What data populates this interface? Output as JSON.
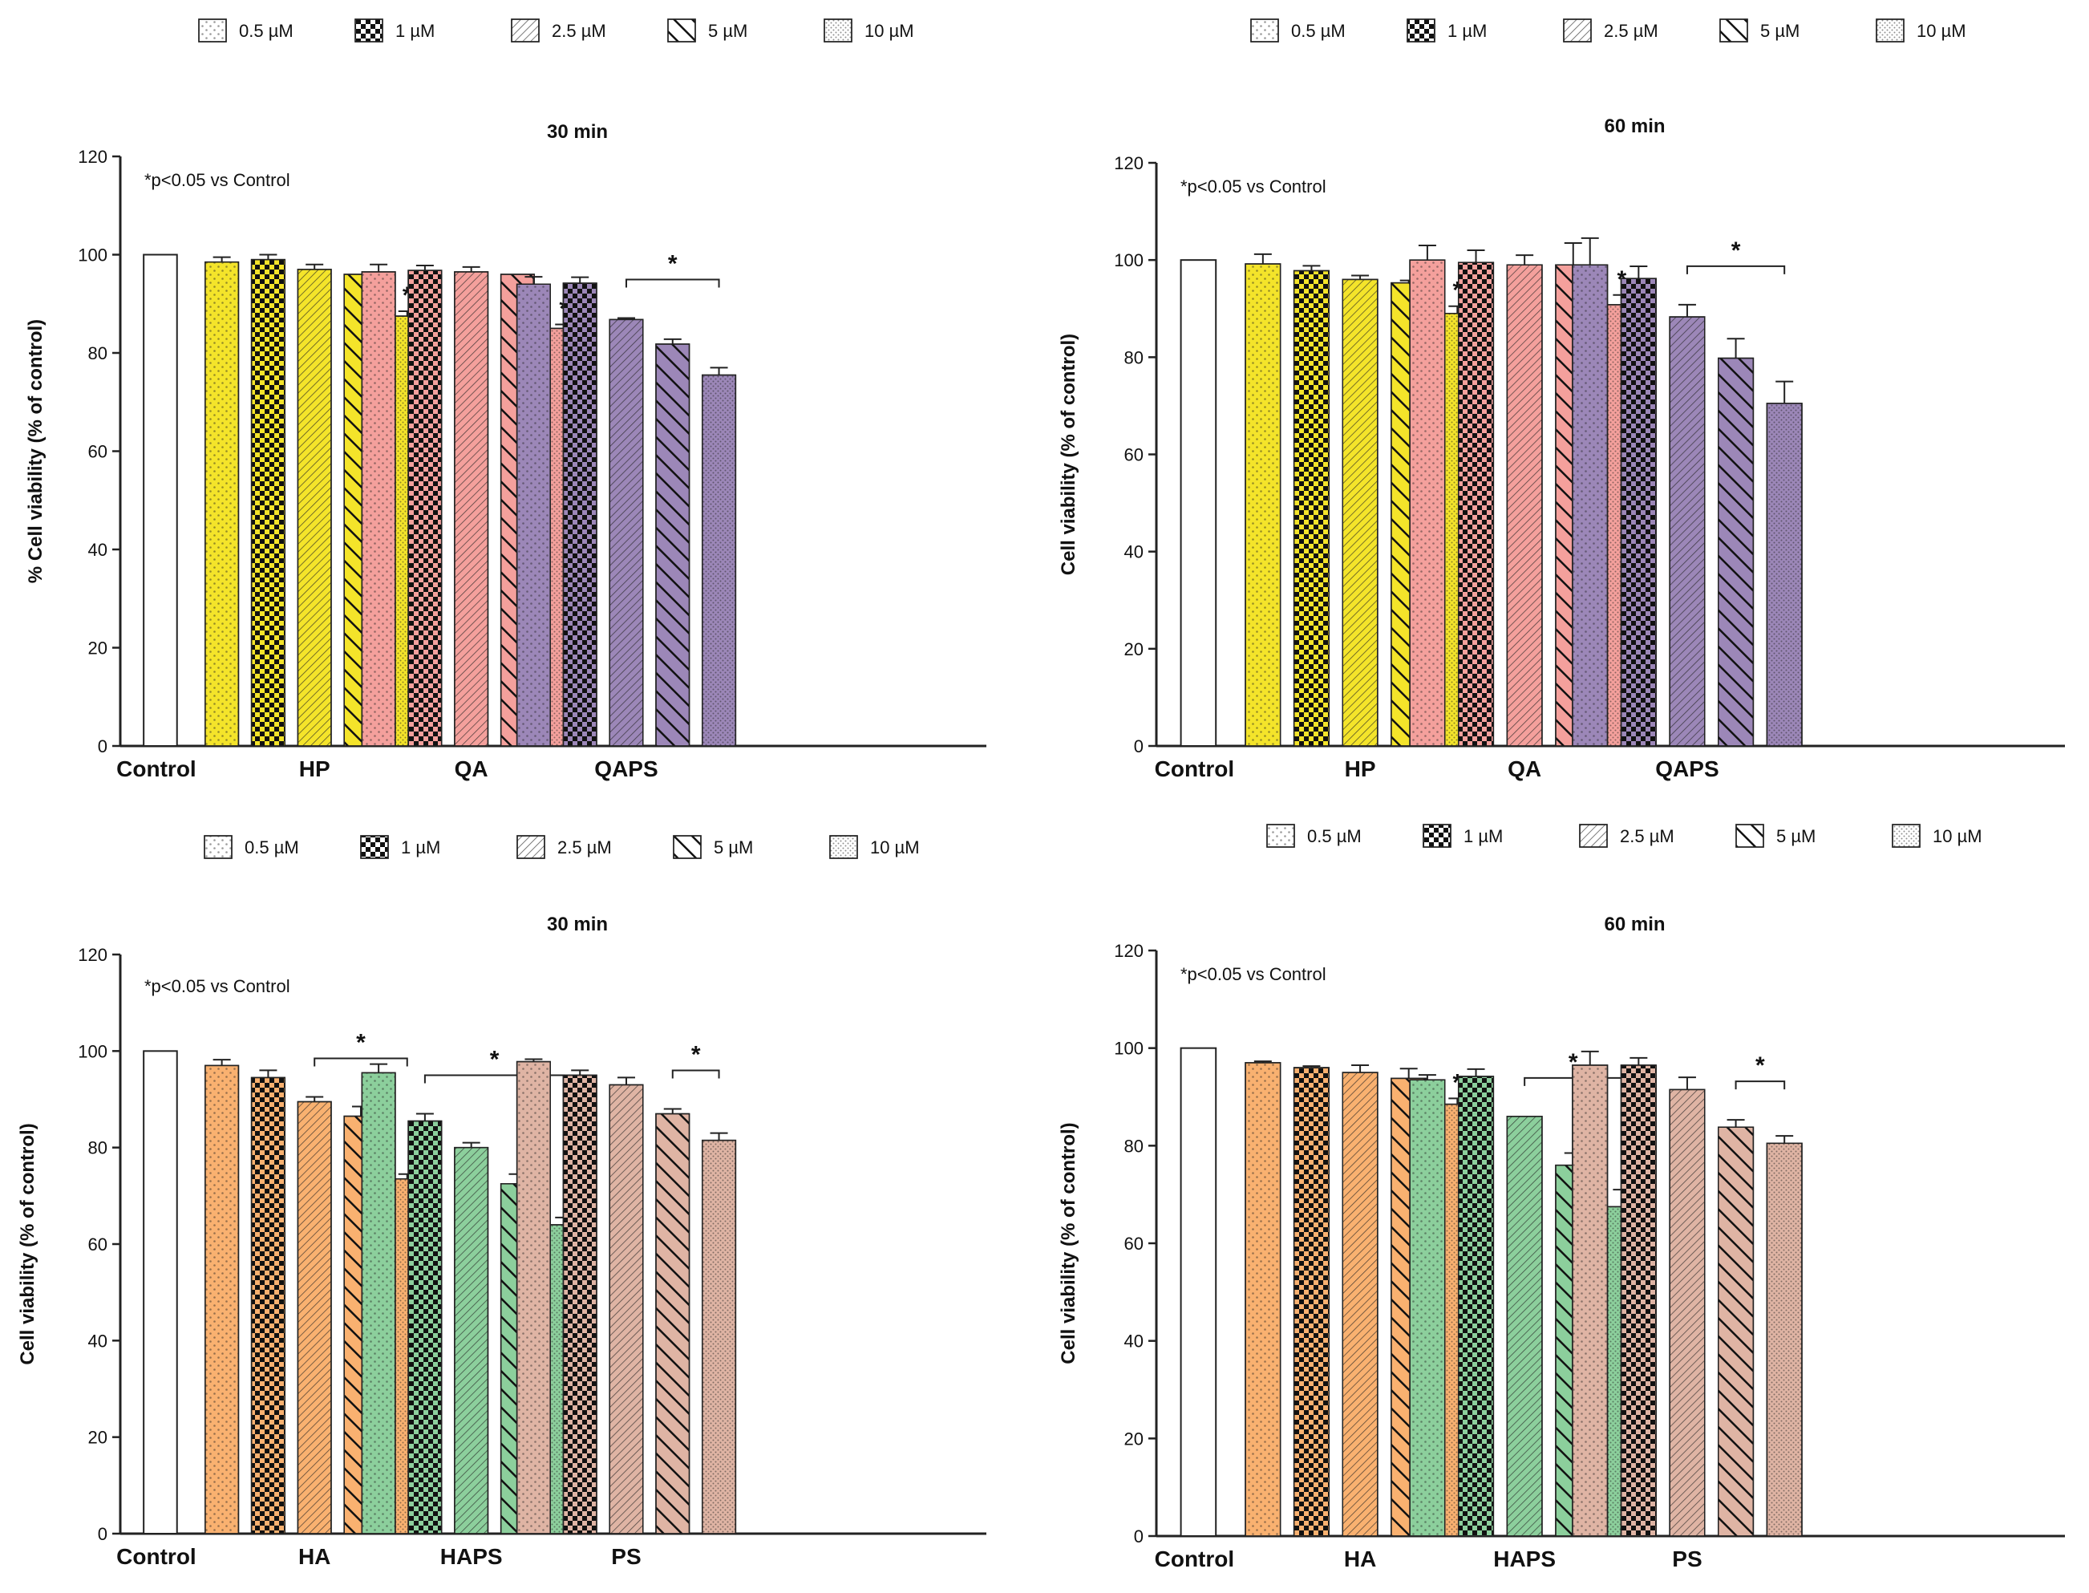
{
  "legend": {
    "doses": [
      "0.5 µM",
      "1 µM",
      "2.5 µM",
      "5 µM",
      "10 µM"
    ]
  },
  "colors": {
    "HP": "#f4e42a",
    "QA": "#f4a09c",
    "QAPS": "#9c87b8",
    "HA": "#f9b170",
    "HAPS": "#8ccf9c",
    "PS": "#dfb4a4",
    "control": "#ffffff",
    "axis": "#222222"
  },
  "chart_data": [
    {
      "type": "bar",
      "title": "30 min",
      "ylabel": "% Cell viability (% of control)",
      "xlabel": "",
      "ylim": [
        0,
        120
      ],
      "yticks": [
        0,
        20,
        40,
        60,
        80,
        100,
        120
      ],
      "annotation": "*p<0.05 vs Control",
      "control": {
        "label": "Control",
        "value": 100
      },
      "groups": [
        {
          "name": "HP",
          "color_key": "HP",
          "values": [
            98.5,
            99.0,
            97.0,
            96.0,
            87.5
          ],
          "errors": [
            1.0,
            1.0,
            1.0,
            0,
            1.0
          ],
          "sig": {
            "type": "single",
            "index": 4,
            "label": "*"
          }
        },
        {
          "name": "QA",
          "color_key": "QA",
          "values": [
            96.5,
            96.8,
            96.5,
            96.0,
            85.0
          ],
          "errors": [
            1.5,
            1.0,
            1.0,
            0,
            0.8
          ],
          "sig": {
            "type": "single",
            "index": 4,
            "label": "*"
          }
        },
        {
          "name": "QAPS",
          "color_key": "QAPS",
          "values": [
            94.0,
            94.2,
            86.8,
            81.8,
            75.5
          ],
          "errors": [
            1.5,
            1.2,
            0.3,
            1.0,
            1.5
          ],
          "sig": {
            "type": "bracket",
            "from": 2,
            "to": 4,
            "label": "*"
          }
        }
      ]
    },
    {
      "type": "bar",
      "title": "60 min",
      "ylabel": "Cell viability (% of control)",
      "xlabel": "",
      "ylim": [
        0,
        120
      ],
      "yticks": [
        0,
        20,
        40,
        60,
        80,
        100,
        120
      ],
      "annotation": "*p<0.05 vs Control",
      "control": {
        "label": "Control",
        "value": 100
      },
      "groups": [
        {
          "name": "HP",
          "color_key": "HP",
          "values": [
            99.2,
            97.8,
            96.0,
            95.3,
            89.0
          ],
          "errors": [
            2.0,
            1.0,
            0.8,
            0.5,
            1.5
          ],
          "sig": {
            "type": "single",
            "index": 4,
            "label": "*"
          }
        },
        {
          "name": "QA",
          "color_key": "QA",
          "values": [
            100.0,
            99.5,
            99.0,
            99.0,
            90.8
          ],
          "errors": [
            3.0,
            2.5,
            2.0,
            4.5,
            2.0
          ],
          "sig": {
            "type": "single",
            "index": 4,
            "label": "*"
          }
        },
        {
          "name": "QAPS",
          "color_key": "QAPS",
          "values": [
            99.0,
            96.2,
            88.3,
            79.8,
            70.5
          ],
          "errors": [
            5.5,
            2.5,
            2.5,
            4.0,
            4.5
          ],
          "sig": {
            "type": "bracket",
            "from": 2,
            "to": 4,
            "label": "*"
          }
        }
      ]
    },
    {
      "type": "bar",
      "title": "30 min",
      "ylabel": "Cell viability (% of control)",
      "xlabel": "",
      "ylim": [
        0,
        120
      ],
      "yticks": [
        0,
        20,
        40,
        60,
        80,
        100,
        120
      ],
      "annotation": "*p<0.05 vs Control",
      "control": {
        "label": "Control",
        "value": 100
      },
      "groups": [
        {
          "name": "HA",
          "color_key": "HA",
          "values": [
            97.0,
            94.5,
            89.5,
            86.5,
            73.5
          ],
          "errors": [
            1.2,
            1.5,
            1.0,
            2.0,
            1.0
          ],
          "sig": {
            "type": "bracket",
            "from": 2,
            "to": 4,
            "label": "*"
          }
        },
        {
          "name": "HAPS",
          "color_key": "HAPS",
          "values": [
            95.5,
            85.5,
            80.0,
            72.5,
            64.0
          ],
          "errors": [
            1.8,
            1.5,
            1.0,
            2.0,
            1.5
          ],
          "sig": {
            "type": "bracket",
            "from": 1,
            "to": 4,
            "label": "*"
          }
        },
        {
          "name": "PS",
          "color_key": "PS",
          "values": [
            97.8,
            95.0,
            93.0,
            87.0,
            81.5
          ],
          "errors": [
            0.5,
            1.0,
            1.5,
            1.0,
            1.5
          ],
          "sig": {
            "type": "bracket",
            "from": 3,
            "to": 4,
            "label": "*"
          }
        }
      ]
    },
    {
      "type": "bar",
      "title": "60 min",
      "ylabel": "Cell viability (% of control)",
      "xlabel": "",
      "ylim": [
        0,
        120
      ],
      "yticks": [
        0,
        20,
        40,
        60,
        80,
        100,
        120
      ],
      "annotation": "*p<0.05 vs Control",
      "control": {
        "label": "Control",
        "value": 100
      },
      "groups": [
        {
          "name": "HA",
          "color_key": "HA",
          "values": [
            97.0,
            96.0,
            95.0,
            93.8,
            88.5
          ],
          "errors": [
            0.3,
            0.3,
            1.5,
            2.0,
            1.2
          ],
          "sig": {
            "type": "single",
            "index": 4,
            "label": "*"
          }
        },
        {
          "name": "HAPS",
          "color_key": "HAPS",
          "values": [
            93.5,
            94.2,
            86.0,
            76.0,
            67.5
          ],
          "errors": [
            1.0,
            1.5,
            0,
            2.5,
            3.5
          ],
          "sig": {
            "type": "bracket",
            "from": 2,
            "to": 4,
            "label": "*"
          }
        },
        {
          "name": "PS",
          "color_key": "PS",
          "values": [
            96.5,
            96.5,
            91.5,
            83.8,
            80.5
          ],
          "errors": [
            2.8,
            1.5,
            2.5,
            1.5,
            1.5
          ],
          "sig": {
            "type": "bracket",
            "from": 3,
            "to": 4,
            "label": "*"
          }
        }
      ]
    }
  ]
}
